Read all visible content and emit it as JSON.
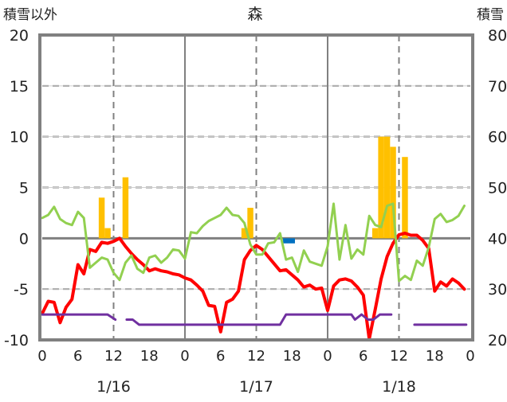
{
  "chart_data": {
    "type": "line",
    "title": "森",
    "ylabel_left": "積雪以外",
    "ylabel_right": "積雪",
    "ylim_left": [
      -10,
      20
    ],
    "ylim_right": [
      20,
      80
    ],
    "yticks_left": [
      "20",
      "15",
      "10",
      "5",
      "0",
      "-5",
      "-10"
    ],
    "yticks_right": [
      "80",
      "70",
      "60",
      "50",
      "40",
      "30",
      "20"
    ],
    "xlim_hours": [
      0,
      72
    ],
    "xtick_labels": [
      "0",
      "6",
      "12",
      "18",
      "0",
      "6",
      "12",
      "18",
      "0",
      "6",
      "12",
      "18",
      "0"
    ],
    "dates": [
      "1/16",
      "1/17",
      "1/18"
    ],
    "grid": true,
    "colors": {
      "red": "#ff0000",
      "green": "#92d050",
      "purple": "#7030a0",
      "orange": "#ffc000",
      "blue": "#0070c0",
      "axis": "#808080"
    },
    "series": [
      {
        "name": "red",
        "axis": "left",
        "color": "#ff0000",
        "x": [
          0,
          1,
          2,
          3,
          4,
          5,
          6,
          7,
          8,
          9,
          10,
          11,
          12,
          13,
          14,
          15,
          16,
          17,
          18,
          19,
          20,
          21,
          22,
          23,
          24,
          25,
          26,
          27,
          28,
          29,
          30,
          31,
          32,
          33,
          34,
          35,
          36,
          37,
          38,
          39,
          40,
          41,
          42,
          43,
          44,
          45,
          46,
          47,
          48,
          49,
          50,
          51,
          52,
          53,
          54,
          55,
          56,
          57,
          58,
          59,
          60,
          61,
          62,
          63,
          64,
          65,
          66,
          67,
          68,
          69,
          70,
          71
        ],
        "y": [
          -7.4,
          -6.2,
          -6.3,
          -8.3,
          -6.8,
          -6.0,
          -2.6,
          -3.5,
          -1.1,
          -1.3,
          -0.4,
          -0.5,
          -0.3,
          0,
          -0.8,
          -1.5,
          -2.1,
          -2.6,
          -3.2,
          -3.0,
          -3.2,
          -3.3,
          -3.5,
          -3.6,
          -3.9,
          -4.1,
          -4.6,
          -5.2,
          -6.6,
          -6.7,
          -9.2,
          -6.3,
          -6.0,
          -5.2,
          -2.1,
          -1.2,
          -0.7,
          -1.1,
          -1.8,
          -2.5,
          -3.2,
          -3.1,
          -3.6,
          -4.1,
          -4.8,
          -4.6,
          -5.0,
          -4.9,
          -7.1,
          -4.7,
          -4.1,
          -4.0,
          -4.2,
          -4.8,
          -5.6,
          -9.9,
          -7.0,
          -4.0,
          -1.8,
          -0.5,
          0.35,
          0.5,
          0.3,
          0.3,
          -0.2,
          -1.0,
          -5.2,
          -4.3,
          -4.7,
          -4.0,
          -4.4,
          -5.0
        ]
      },
      {
        "name": "green",
        "axis": "right",
        "color": "#92d050",
        "x": [
          0,
          1,
          2,
          3,
          4,
          5,
          6,
          7,
          8,
          9,
          10,
          11,
          12,
          13,
          14,
          15,
          16,
          17,
          18,
          19,
          20,
          21,
          22,
          23,
          24,
          25,
          26,
          27,
          28,
          29,
          30,
          31,
          32,
          33,
          34,
          35,
          36,
          37,
          38,
          39,
          40,
          41,
          42,
          43,
          44,
          45,
          46,
          47,
          48,
          49,
          50,
          51,
          52,
          53,
          54,
          55,
          56,
          57,
          58,
          59,
          60,
          61,
          62,
          63,
          64,
          65,
          66,
          67,
          68,
          69,
          70,
          71
        ],
        "y": [
          44,
          44.6,
          46.2,
          43.8,
          43,
          42.6,
          45.2,
          44,
          34.2,
          35.2,
          36.2,
          35.8,
          33.2,
          31.8,
          35.2,
          36.6,
          34,
          33.2,
          36.2,
          36.6,
          35.2,
          36.2,
          37.8,
          37.6,
          36,
          41.2,
          41,
          42.4,
          43.4,
          44,
          44.6,
          46,
          44.6,
          44.4,
          43,
          38.8,
          36.8,
          36.8,
          39,
          39.2,
          41,
          35.8,
          36.2,
          33.4,
          37.6,
          35.4,
          35,
          34.6,
          38.4,
          46.8,
          35.8,
          42.6,
          36,
          37.8,
          36.8,
          44.4,
          42.6,
          42.2,
          46.4,
          46.8,
          31.6,
          32.6,
          31.8,
          35.6,
          34.6,
          38.2,
          43.8,
          44.8,
          43.2,
          43.6,
          44.4,
          46.4
        ]
      },
      {
        "name": "purple",
        "axis": "left",
        "color": "#7030a0",
        "x": [
          0,
          11,
          12.3,
          13,
          14.2,
          15.2,
          16.3,
          40,
          41,
          52,
          52.6,
          53.7,
          54.8,
          55.7,
          56.8,
          58.7,
          59,
          62,
          62.6,
          71.3
        ],
        "y": [
          -7.5,
          -7.5,
          -8.0,
          null,
          -8.0,
          -8.0,
          -8.5,
          -8.5,
          -7.5,
          -7.5,
          -8.0,
          -7.5,
          -8.0,
          -8.0,
          -7.5,
          -7.5,
          null,
          null,
          -8.5,
          -8.5
        ]
      }
    ],
    "bars": [
      {
        "name": "orange",
        "axis": "left",
        "color": "#ffc000",
        "x": [
          10,
          11,
          14,
          34,
          35,
          56,
          57,
          58,
          59,
          61
        ],
        "values": [
          4,
          1,
          6,
          1,
          3,
          1,
          10,
          10,
          9,
          8
        ]
      },
      {
        "name": "blue",
        "axis": "left",
        "color": "#0070c0",
        "x": [
          41,
          42
        ],
        "values": [
          -0.5,
          -0.5
        ]
      }
    ]
  }
}
